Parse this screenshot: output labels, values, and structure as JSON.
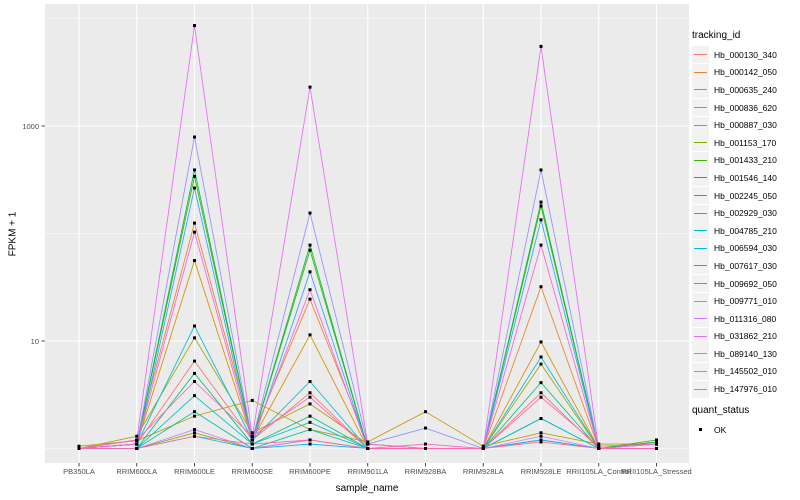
{
  "figure": {
    "background": "#FFFFFF",
    "panel_background": "#EBEBEB",
    "gridline_color": "#FFFFFF",
    "axis_text_color": "#4D4D4D",
    "tick_mark_color": "#333333",
    "point_color": "#000000",
    "legend_key_background": "#F2F2F2"
  },
  "chart_data": {
    "type": "line",
    "title": "",
    "xlabel": "sample_name",
    "ylabel": "FPKM + 1",
    "y_scale": "log10",
    "ylim": [
      0.74,
      13500
    ],
    "grid": true,
    "legend_position": "right",
    "legend_title": "tracking_id",
    "x_categories": [
      "PB350LA",
      "RRIM600LA",
      "RRIM600LE",
      "RRIM600SE",
      "RRIM600PE",
      "RRIM901LA",
      "RRIM928BA",
      "RRIM928LA",
      "RRIM928LE",
      "RRII105LA_Control",
      "RRII105LA_Stressed"
    ],
    "y_ticks": [
      {
        "label": "1000",
        "value": 1000
      },
      {
        "label": "10",
        "value": 10
      }
    ],
    "y_minor_gridlines": [
      1,
      100,
      10000
    ],
    "series": [
      {
        "name": "Hb_000130_340",
        "color": "#F8766D",
        "values": [
          1.0,
          1.1,
          6.5,
          1.2,
          3.3,
          1.0,
          1.0,
          1.0,
          3.3,
          1.0,
          1.1
        ]
      },
      {
        "name": "Hb_000142_050",
        "color": "#EA8331",
        "values": [
          1.0,
          1.2,
          125,
          1.3,
          24.5,
          1.1,
          1.0,
          1.0,
          32,
          1.0,
          1.0
        ]
      },
      {
        "name": "Hb_000635_240",
        "color": "#D89000",
        "values": [
          1.0,
          1.1,
          56,
          1.2,
          11.4,
          1.0,
          1.0,
          1.0,
          9.8,
          1.0,
          1.0
        ]
      },
      {
        "name": "Hb_000836_620",
        "color": "#C09B00",
        "values": [
          1.05,
          1.18,
          2.0,
          2.8,
          1.5,
          1.15,
          2.2,
          1.05,
          1.4,
          1.1,
          1.1
        ]
      },
      {
        "name": "Hb_000887_030",
        "color": "#A3A500",
        "values": [
          1.0,
          1.3,
          10.7,
          1.4,
          2.6,
          1.1,
          1.0,
          1.0,
          6.1,
          1.0,
          1.1
        ]
      },
      {
        "name": "Hb_001153_170",
        "color": "#7CAE00",
        "values": [
          1.0,
          1.0,
          1.4,
          1.0,
          1.2,
          1.0,
          1.0,
          1.0,
          1.2,
          1.0,
          1.0
        ]
      },
      {
        "name": "Hb_001433_210",
        "color": "#39B600",
        "values": [
          1.0,
          1.1,
          340,
          1.2,
          70,
          1.0,
          1.0,
          1.0,
          180,
          1.0,
          1.2
        ]
      },
      {
        "name": "Hb_001546_140",
        "color": "#00BB4E",
        "values": [
          1.0,
          1.1,
          390,
          1.2,
          78,
          1.0,
          1.0,
          1.0,
          196,
          1.0,
          1.15
        ]
      },
      {
        "name": "Hb_002245_050",
        "color": "#00BF7D",
        "values": [
          1.0,
          1.0,
          5.0,
          1.1,
          2.0,
          1.0,
          1.0,
          1.0,
          4.1,
          1.0,
          1.0
        ]
      },
      {
        "name": "Hb_002929_030",
        "color": "#00C1A3",
        "values": [
          1.0,
          1.0,
          2.2,
          1.0,
          1.5,
          1.0,
          1.0,
          1.0,
          1.9,
          1.0,
          1.0
        ]
      },
      {
        "name": "Hb_004785_210",
        "color": "#00BFC4",
        "values": [
          1.0,
          1.0,
          3.1,
          1.1,
          1.75,
          1.0,
          1.0,
          1.0,
          1.9,
          1.0,
          1.0
        ]
      },
      {
        "name": "Hb_006594_030",
        "color": "#00BAE0",
        "values": [
          1.0,
          1.1,
          13.8,
          1.2,
          4.2,
          1.0,
          1.0,
          1.0,
          7.1,
          1.0,
          1.0
        ]
      },
      {
        "name": "Hb_007617_030",
        "color": "#00B0F6",
        "values": [
          1.0,
          1.0,
          1.3,
          1.0,
          1.1,
          1.0,
          1.0,
          1.0,
          1.2,
          1.0,
          1.0
        ]
      },
      {
        "name": "Hb_009692_050",
        "color": "#35A2FF",
        "values": [
          1.0,
          1.0,
          265,
          1.1,
          44,
          1.0,
          1.0,
          1.0,
          134,
          1.0,
          1.1
        ]
      },
      {
        "name": "Hb_009771_010",
        "color": "#9590FF",
        "values": [
          1.0,
          1.1,
          790,
          1.2,
          155,
          1.1,
          1.55,
          1.0,
          390,
          1.0,
          1.1
        ]
      },
      {
        "name": "Hb_011316_080",
        "color": "#C77CFF",
        "values": [
          1.0,
          1.0,
          1.5,
          1.0,
          1.2,
          1.0,
          1.0,
          1.0,
          1.3,
          1.0,
          1.0
        ]
      },
      {
        "name": "Hb_031862_210",
        "color": "#E76BF3",
        "values": [
          1.0,
          1.2,
          8600,
          1.3,
          2300,
          1.1,
          1.0,
          1.0,
          5500,
          1.0,
          1.1
        ]
      },
      {
        "name": "Hb_089140_130",
        "color": "#FA62DB",
        "values": [
          1.0,
          1.1,
          103,
          1.2,
          30,
          1.0,
          1.0,
          1.0,
          78,
          1.0,
          1.0
        ]
      },
      {
        "name": "Hb_145502_010",
        "color": "#FF62BC",
        "values": [
          1.0,
          1.2,
          4.2,
          1.3,
          3.0,
          1.0,
          1.1,
          1.0,
          3.0,
          1.05,
          1.1
        ]
      },
      {
        "name": "Hb_147976_010",
        "color": "#FF6A98",
        "values": [
          1.0,
          1.0,
          1.3,
          1.1,
          1.2,
          1.0,
          1.0,
          1.0,
          1.15,
          1.0,
          1.0
        ]
      }
    ],
    "quant_status": {
      "title": "quant_status",
      "items": [
        {
          "label": "OK",
          "marker": "black-square"
        }
      ]
    }
  }
}
